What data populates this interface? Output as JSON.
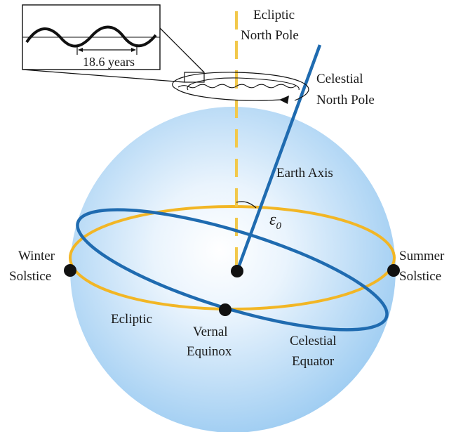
{
  "colors": {
    "sphere_center": "#ffffff",
    "sphere_edge": "#9fcdf2",
    "ecliptic": "#f2b625",
    "equator": "#1f6bb0",
    "axis": "#1f6bb0",
    "pole_dash": "#f2c84b",
    "dot": "#111111",
    "stroke": "#111111"
  },
  "labels": {
    "ecliptic_north_pole": [
      "Ecliptic",
      "North Pole"
    ],
    "celestial_north_pole": [
      "Celestial",
      "North Pole"
    ],
    "earth_axis": "Earth Axis",
    "epsilon": "ε",
    "epsilon_sub": "0",
    "winter_solstice": [
      "Winter",
      "Solstice"
    ],
    "summer_solstice": [
      "Summer",
      "Solstice"
    ],
    "ecliptic": "Ecliptic",
    "vernal_equinox": [
      "Vernal",
      "Equinox"
    ],
    "celestial_equator": [
      "Celestial",
      "Equator"
    ],
    "nutation_period": "18.6 years"
  }
}
